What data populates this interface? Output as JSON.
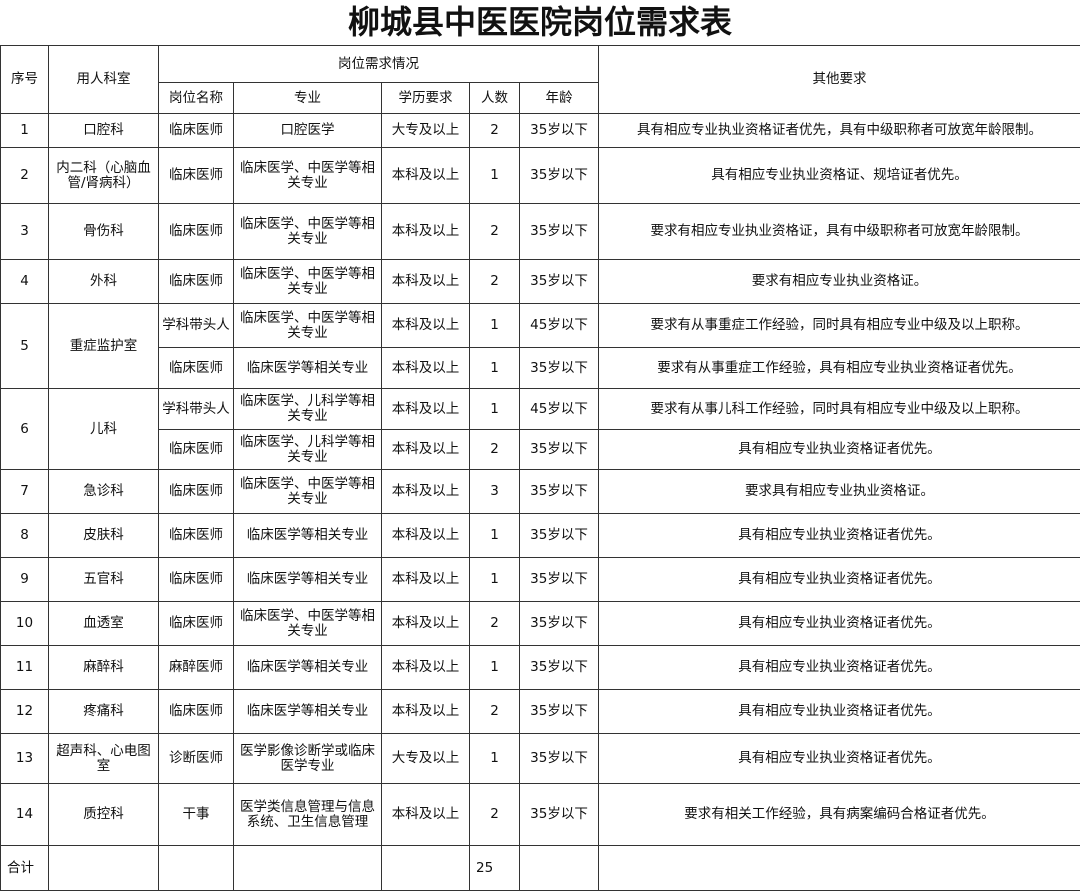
{
  "title": "柳城县中医医院岗位需求表",
  "headers": {
    "no": "序号",
    "dept": "用人科室",
    "group": "岗位需求情况",
    "position": "岗位名称",
    "major": "专业",
    "education": "学历要求",
    "count": "人数",
    "age": "年龄",
    "other": "其他要求"
  },
  "rows": [
    {
      "no": "1",
      "dept": "口腔科",
      "positions": [
        {
          "title": "临床医师",
          "major": "口腔医学",
          "edu": "大专及以上",
          "count": "2",
          "age": "35岁以下",
          "other": "具有相应专业执业资格证者优先，具有中级职称者可放宽年龄限制。"
        }
      ]
    },
    {
      "no": "2",
      "dept": "内二科（心脑血管/肾病科）",
      "positions": [
        {
          "title": "临床医师",
          "major": "临床医学、中医学等相关专业",
          "edu": "本科及以上",
          "count": "1",
          "age": "35岁以下",
          "other": "具有相应专业执业资格证、规培证者优先。"
        }
      ]
    },
    {
      "no": "3",
      "dept": "骨伤科",
      "positions": [
        {
          "title": "临床医师",
          "major": "临床医学、中医学等相关专业",
          "edu": "本科及以上",
          "count": "2",
          "age": "35岁以下",
          "other": "要求有相应专业执业资格证，具有中级职称者可放宽年龄限制。"
        }
      ]
    },
    {
      "no": "4",
      "dept": "外科",
      "positions": [
        {
          "title": "临床医师",
          "major": "临床医学、中医学等相关专业",
          "edu": "本科及以上",
          "count": "2",
          "age": "35岁以下",
          "other": "要求有相应专业执业资格证。"
        }
      ]
    },
    {
      "no": "5",
      "dept": "重症监护室",
      "positions": [
        {
          "title": "学科带头人",
          "major": "临床医学、中医学等相关专业",
          "edu": "本科及以上",
          "count": "1",
          "age": "45岁以下",
          "other": "要求有从事重症工作经验，同时具有相应专业中级及以上职称。"
        },
        {
          "title": "临床医师",
          "major": "临床医学等相关专业",
          "edu": "本科及以上",
          "count": "1",
          "age": "35岁以下",
          "other": "要求有从事重症工作经验，具有相应专业执业资格证者优先。"
        }
      ]
    },
    {
      "no": "6",
      "dept": "儿科",
      "positions": [
        {
          "title": "学科带头人",
          "major": "临床医学、儿科学等相关专业",
          "edu": "本科及以上",
          "count": "1",
          "age": "45岁以下",
          "other": "要求有从事儿科工作经验，同时具有相应专业中级及以上职称。"
        },
        {
          "title": "临床医师",
          "major": "临床医学、儿科学等相关专业",
          "edu": "本科及以上",
          "count": "2",
          "age": "35岁以下",
          "other": "具有相应专业执业资格证者优先。"
        }
      ]
    },
    {
      "no": "7",
      "dept": "急诊科",
      "positions": [
        {
          "title": "临床医师",
          "major": "临床医学、中医学等相关专业",
          "edu": "本科及以上",
          "count": "3",
          "age": "35岁以下",
          "other": "要求具有相应专业执业资格证。"
        }
      ]
    },
    {
      "no": "8",
      "dept": "皮肤科",
      "positions": [
        {
          "title": "临床医师",
          "major": "临床医学等相关专业",
          "edu": "本科及以上",
          "count": "1",
          "age": "35岁以下",
          "other": "具有相应专业执业资格证者优先。"
        }
      ]
    },
    {
      "no": "9",
      "dept": "五官科",
      "positions": [
        {
          "title": "临床医师",
          "major": "临床医学等相关专业",
          "edu": "本科及以上",
          "count": "1",
          "age": "35岁以下",
          "other": "具有相应专业执业资格证者优先。"
        }
      ]
    },
    {
      "no": "10",
      "dept": "血透室",
      "positions": [
        {
          "title": "临床医师",
          "major": "临床医学、中医学等相关专业",
          "edu": "本科及以上",
          "count": "2",
          "age": "35岁以下",
          "other": "具有相应专业执业资格证者优先。"
        }
      ]
    },
    {
      "no": "11",
      "dept": "麻醉科",
      "positions": [
        {
          "title": "麻醉医师",
          "major": "临床医学等相关专业",
          "edu": "本科及以上",
          "count": "1",
          "age": "35岁以下",
          "other": "具有相应专业执业资格证者优先。"
        }
      ]
    },
    {
      "no": "12",
      "dept": "疼痛科",
      "positions": [
        {
          "title": "临床医师",
          "major": "临床医学等相关专业",
          "edu": "本科及以上",
          "count": "2",
          "age": "35岁以下",
          "other": "具有相应专业执业资格证者优先。"
        }
      ]
    },
    {
      "no": "13",
      "dept": "超声科、心电图室",
      "positions": [
        {
          "title": "诊断医师",
          "major": "医学影像诊断学或临床医学专业",
          "edu": "大专及以上",
          "count": "1",
          "age": "35岁以下",
          "other": "具有相应专业执业资格证者优先。"
        }
      ]
    },
    {
      "no": "14",
      "dept": "质控科",
      "positions": [
        {
          "title": "干事",
          "major": "医学类信息管理与信息系统、卫生信息管理",
          "edu": "本科及以上",
          "count": "2",
          "age": "35岁以下",
          "other": "要求有相关工作经验，具有病案编码合格证者优先。"
        }
      ]
    }
  ],
  "total": {
    "label": "合计",
    "count": "25"
  }
}
